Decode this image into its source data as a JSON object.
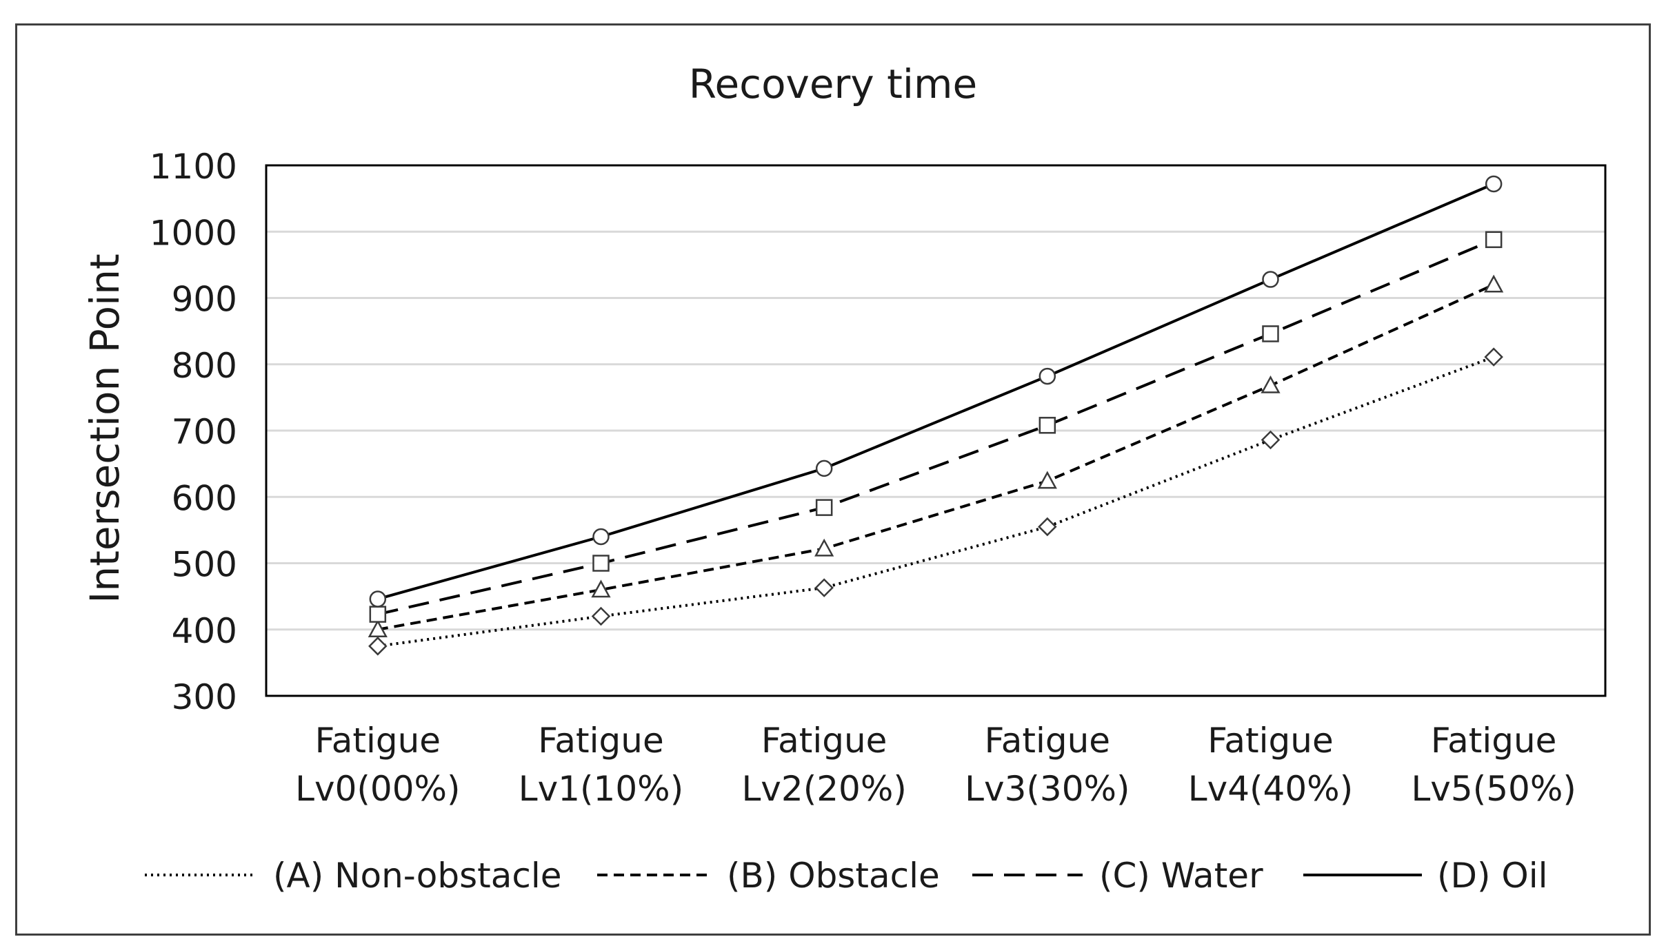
{
  "chart_data": {
    "type": "line",
    "title": "Recovery time",
    "xlabel": "",
    "ylabel": "Intersection Point",
    "ylim": [
      300,
      1100
    ],
    "yticks": [
      300,
      400,
      500,
      600,
      700,
      800,
      900,
      1000,
      1100
    ],
    "grid": true,
    "legend_position": "bottom",
    "categories": [
      [
        "Fatigue",
        "Lv0(00%)"
      ],
      [
        "Fatigue",
        "Lv1(10%)"
      ],
      [
        "Fatigue",
        "Lv2(20%)"
      ],
      [
        "Fatigue",
        "Lv3(30%)"
      ],
      [
        "Fatigue",
        "Lv4(40%)"
      ],
      [
        "Fatigue",
        "Lv5(50%)"
      ]
    ],
    "series": [
      {
        "name": "(A) Non-obstacle",
        "values": [
          375,
          420,
          463,
          555,
          686,
          811
        ],
        "marker": "diamond",
        "dash": "dotted"
      },
      {
        "name": "(B) Obstacle",
        "values": [
          400,
          460,
          522,
          624,
          768,
          920
        ],
        "marker": "triangle",
        "dash": "short-dash"
      },
      {
        "name": "(C) Water",
        "values": [
          423,
          500,
          584,
          708,
          846,
          988
        ],
        "marker": "square",
        "dash": "long-dash"
      },
      {
        "name": "(D) Oil",
        "values": [
          446,
          540,
          643,
          782,
          928,
          1072
        ],
        "marker": "circle",
        "dash": "solid"
      }
    ],
    "colors": {
      "line": "#000000",
      "grid": "#d9d9d9",
      "axis": "#000000"
    }
  }
}
